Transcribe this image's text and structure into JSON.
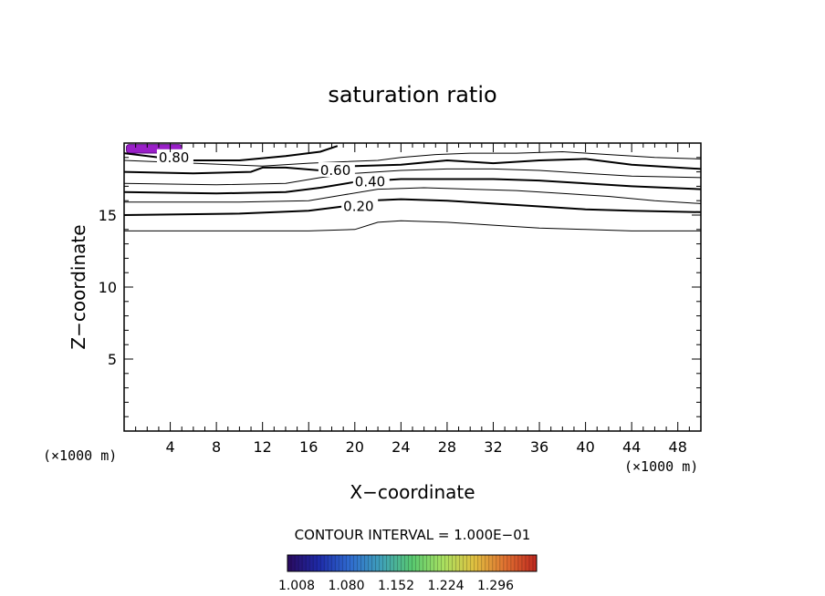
{
  "chart_data": {
    "type": "contour",
    "title": "saturation ratio",
    "xlabel": "X−coordinate",
    "ylabel": "Z−coordinate",
    "x_unit_left": "(×1000 m)",
    "x_unit_right": "(×1000 m)",
    "xlim": [
      0,
      50
    ],
    "ylim": [
      0,
      20
    ],
    "x_ticks": [
      4,
      8,
      12,
      16,
      20,
      24,
      28,
      32,
      36,
      40,
      44,
      48
    ],
    "x_tick_labels": [
      "4",
      "8",
      "12",
      "16",
      "20",
      "24",
      "28",
      "32",
      "36",
      "40",
      "44",
      "48"
    ],
    "y_ticks": [
      5,
      10,
      15
    ],
    "y_tick_labels": [
      "5",
      "10",
      "15"
    ],
    "contour_interval_text": "CONTOUR INTERVAL = 1.000E−01",
    "contours": [
      {
        "level": 0.1,
        "label": "",
        "x": [
          0,
          10,
          16,
          20,
          22,
          24,
          28,
          32,
          36,
          40,
          44,
          50
        ],
        "z": [
          13.9,
          13.9,
          13.9,
          14.0,
          14.5,
          14.6,
          14.5,
          14.3,
          14.1,
          14.0,
          13.9,
          13.9
        ]
      },
      {
        "level": 0.2,
        "label": "0.20",
        "x": [
          0,
          10,
          16,
          19,
          21,
          24,
          28,
          32,
          36,
          40,
          44,
          50
        ],
        "z": [
          15.0,
          15.1,
          15.3,
          15.6,
          16.0,
          16.1,
          16.0,
          15.8,
          15.6,
          15.4,
          15.3,
          15.2
        ]
      },
      {
        "level": 0.3,
        "label": "",
        "x": [
          0,
          10,
          16,
          19,
          22,
          26,
          30,
          34,
          38,
          42,
          46,
          50
        ],
        "z": [
          15.9,
          15.9,
          16.0,
          16.4,
          16.8,
          16.9,
          16.8,
          16.7,
          16.5,
          16.3,
          16.0,
          15.8
        ]
      },
      {
        "level": 0.4,
        "label": "0.40",
        "x": [
          0,
          8,
          14,
          17,
          20,
          24,
          28,
          32,
          36,
          40,
          44,
          50
        ],
        "z": [
          16.6,
          16.5,
          16.6,
          16.9,
          17.3,
          17.5,
          17.5,
          17.5,
          17.4,
          17.2,
          17.0,
          16.8
        ]
      },
      {
        "level": 0.5,
        "label": "",
        "x": [
          0,
          8,
          14,
          17,
          20,
          24,
          28,
          32,
          36,
          40,
          44,
          50
        ],
        "z": [
          17.2,
          17.1,
          17.2,
          17.6,
          17.9,
          18.1,
          18.2,
          18.2,
          18.1,
          17.9,
          17.7,
          17.6
        ]
      },
      {
        "level": 0.6,
        "label": "0.60",
        "x": [
          0,
          6,
          11,
          12,
          14,
          17,
          20,
          24,
          28,
          32,
          36,
          40,
          44,
          50
        ],
        "z": [
          18.0,
          17.9,
          18.0,
          18.3,
          18.3,
          18.1,
          18.4,
          18.5,
          18.8,
          18.6,
          18.8,
          18.9,
          18.5,
          18.2
        ]
      },
      {
        "level": 0.7,
        "label": "",
        "x": [
          0,
          6,
          12,
          16,
          19,
          22,
          24,
          27,
          30,
          34,
          38,
          42,
          46,
          50
        ],
        "z": [
          18.8,
          18.6,
          18.4,
          18.6,
          18.7,
          18.8,
          19.0,
          19.2,
          19.3,
          19.3,
          19.4,
          19.2,
          19.0,
          18.9
        ]
      },
      {
        "level": 0.8,
        "label": "0.80",
        "x": [
          0,
          3,
          6,
          10,
          14,
          17,
          18.5
        ],
        "z": [
          19.3,
          19.0,
          18.8,
          18.8,
          19.1,
          19.4,
          19.8
        ]
      }
    ],
    "shaded_regions": [
      {
        "x_range": [
          0.2,
          5.0
        ],
        "z_range": [
          19.3,
          19.9
        ],
        "approx_value": 1.0
      }
    ],
    "colorbar": {
      "tick_labels": [
        "1.008",
        "1.080",
        "1.152",
        "1.224",
        "1.296"
      ],
      "colors": [
        "#2a0a5e",
        "#1e2aa8",
        "#2f6bd0",
        "#3fa0b8",
        "#58c870",
        "#a8e060",
        "#e0c040",
        "#e07030",
        "#c02820"
      ]
    }
  }
}
